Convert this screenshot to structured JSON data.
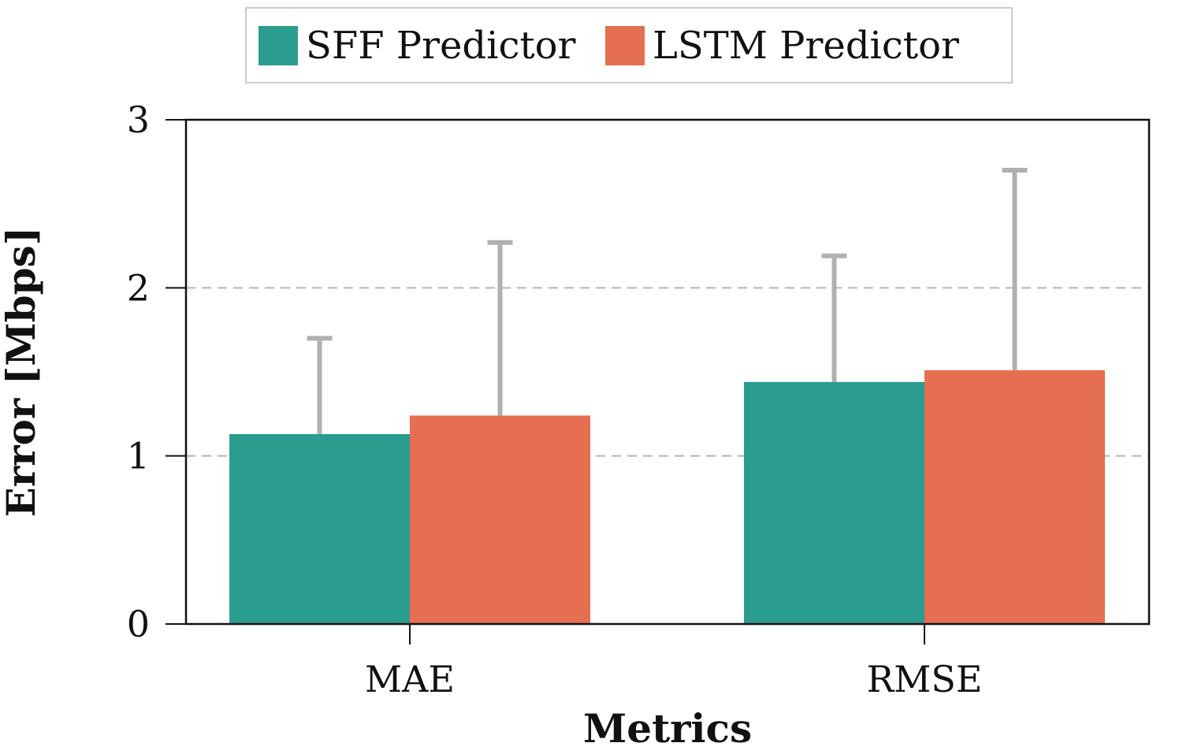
{
  "chart_data": {
    "type": "bar",
    "categories": [
      "MAE",
      "RMSE"
    ],
    "series": [
      {
        "name": "SFF Predictor",
        "color": "#2a9d8f",
        "values": [
          1.13,
          1.44
        ],
        "error_upper": [
          1.7,
          2.19
        ]
      },
      {
        "name": "LSTM Predictor",
        "color": "#e76f51",
        "values": [
          1.24,
          1.51
        ],
        "error_upper": [
          2.27,
          2.7
        ]
      }
    ],
    "error_bar_color": "#b0b0b0",
    "xlabel": "Metrics",
    "ylabel": "Error [Mbps]",
    "ylim": [
      0,
      3
    ],
    "yticks": [
      "0",
      "1",
      "2",
      "3"
    ],
    "grid": "dashed horizontal lines at y=1 and y=2",
    "legend_position": "top-center"
  }
}
